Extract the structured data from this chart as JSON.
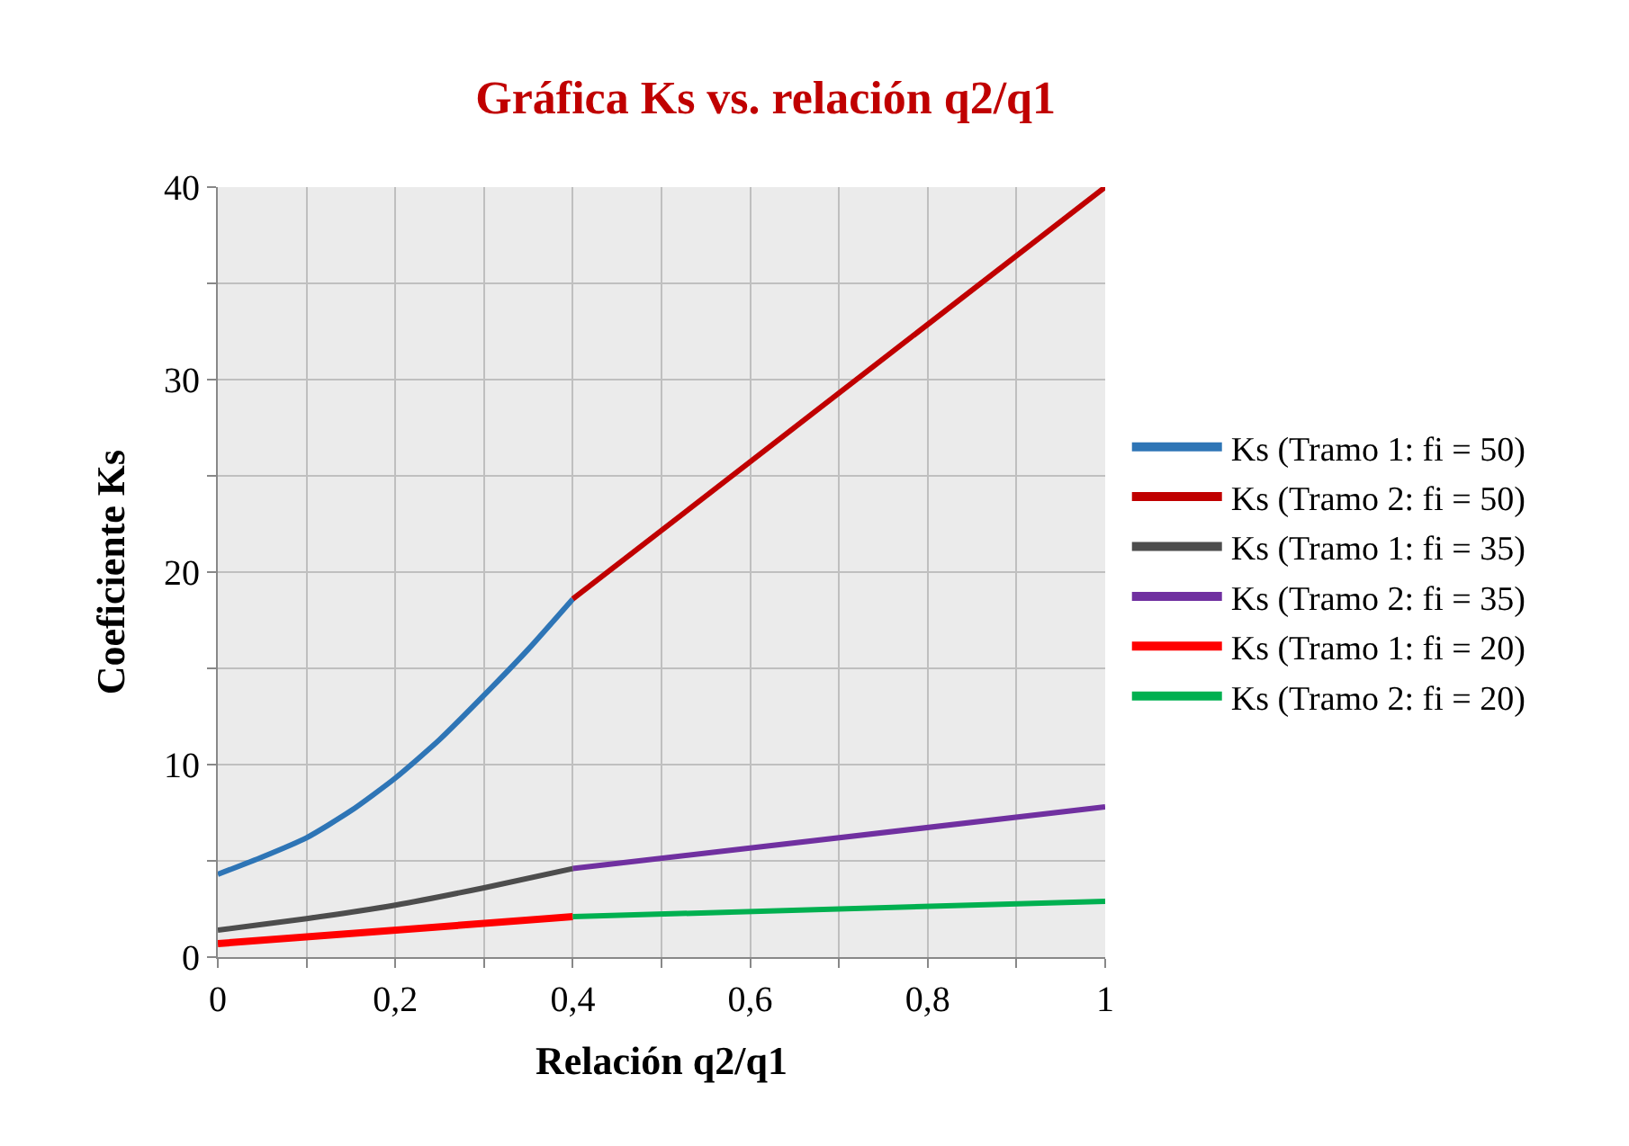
{
  "chart_data": {
    "type": "line",
    "title": "Gráfica Ks vs. relación q2/q1",
    "xlabel": "Relación q2/q1",
    "ylabel": "Coeficiente Ks",
    "xlim": [
      0,
      1
    ],
    "ylim": [
      0,
      40
    ],
    "xticks": [
      0,
      {
        "value": 0.1,
        "label": null
      },
      {
        "value": 0.2,
        "label": "0,2"
      },
      {
        "value": 0.3,
        "label": null
      },
      {
        "value": 0.4,
        "label": "0,4"
      },
      {
        "value": 0.5,
        "label": null
      },
      {
        "value": 0.6,
        "label": "0,6"
      },
      {
        "value": 0.7,
        "label": null
      },
      {
        "value": 0.8,
        "label": "0,8"
      },
      {
        "value": 0.9,
        "label": null
      },
      1
    ],
    "yticks": [
      0,
      {
        "value": 5,
        "label": null
      },
      10,
      {
        "value": 15,
        "label": null
      },
      20,
      {
        "value": 25,
        "label": null
      },
      30,
      {
        "value": 35,
        "label": null
      },
      40
    ],
    "grid": true,
    "legend": "right",
    "marker": "none",
    "line_style": "solid",
    "series": [
      {
        "name": "Ks (Tramo 1: fi = 50)",
        "color": "#2e75b6",
        "x": [
          0,
          0.05,
          0.1,
          0.15,
          0.2,
          0.25,
          0.3,
          0.35,
          0.4
        ],
        "values": [
          4.3,
          5.2,
          6.2,
          7.6,
          9.3,
          11.3,
          13.6,
          16.0,
          18.6
        ]
      },
      {
        "name": "Ks (Tramo 2: fi = 50)",
        "color": "#c00000",
        "x": [
          0.4,
          1
        ],
        "values": [
          18.6,
          40
        ]
      },
      {
        "name": "Ks (Tramo 1: fi = 35)",
        "color": "#4d4d4d",
        "x": [
          0,
          0.1,
          0.2,
          0.3,
          0.4
        ],
        "values": [
          1.4,
          2.0,
          2.7,
          3.6,
          4.6
        ]
      },
      {
        "name": "Ks (Tramo 2: fi = 35)",
        "color": "#7030a0",
        "x": [
          0.4,
          1
        ],
        "values": [
          4.6,
          7.8
        ]
      },
      {
        "name": "Ks (Tramo 1: fi = 20)",
        "color": "#ff0000",
        "x": [
          0,
          0.4
        ],
        "values": [
          0.7,
          2.1
        ]
      },
      {
        "name": "Ks (Tramo 2: fi = 20)",
        "color": "#00b050",
        "x": [
          0.4,
          1
        ],
        "values": [
          2.1,
          2.9
        ]
      }
    ]
  }
}
